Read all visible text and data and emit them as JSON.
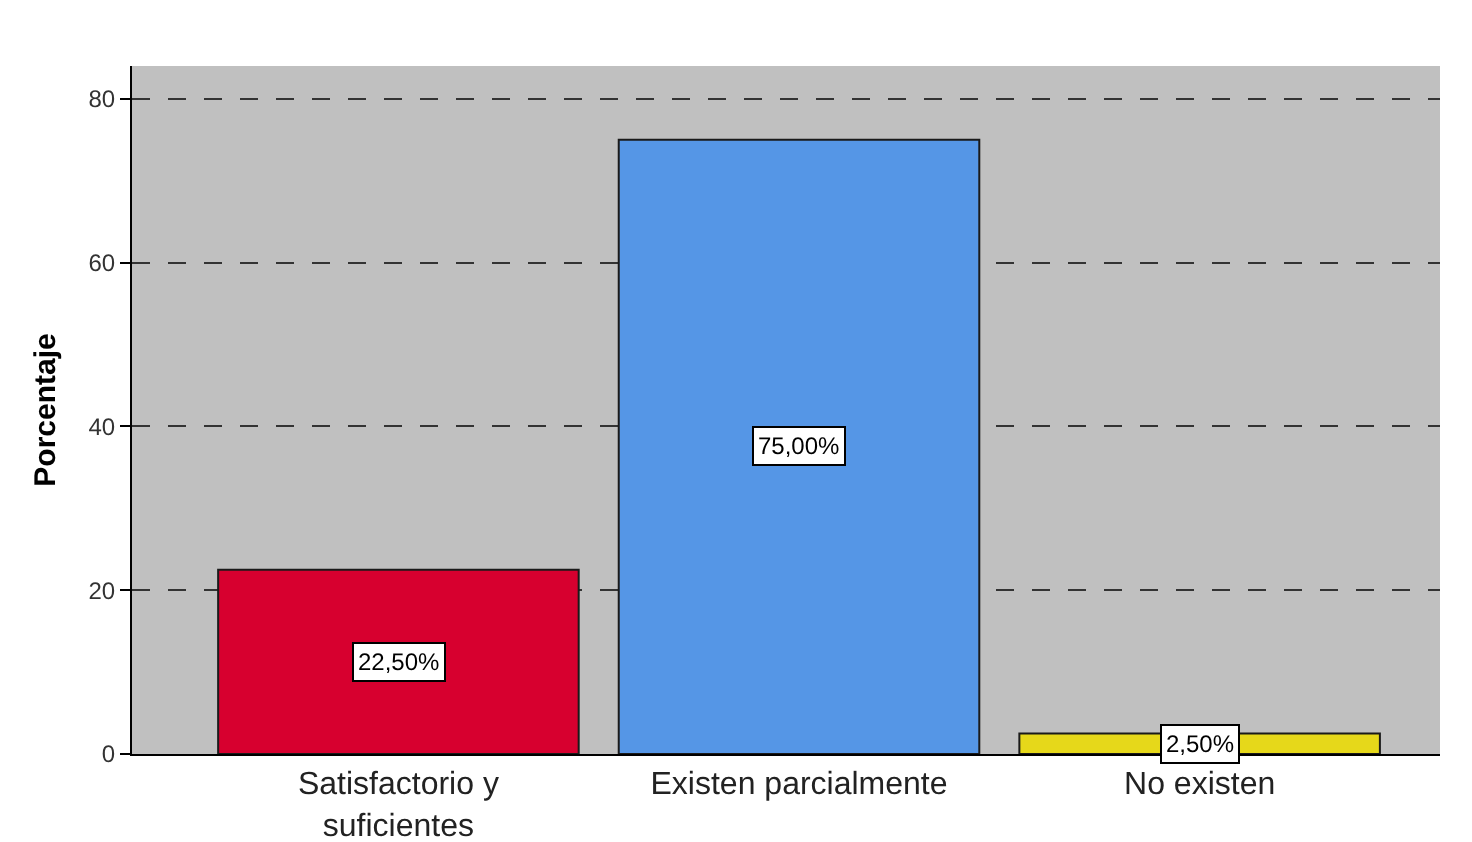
{
  "chart_data": {
    "type": "bar",
    "categories": [
      "Satisfactorio y suficientes",
      "Existen parcialmente",
      "No existen"
    ],
    "values": [
      22.5,
      75,
      2.5
    ],
    "colors": [
      "#d7002f",
      "#5596e6",
      "#e6d81a"
    ],
    "value_labels": [
      "22,50%",
      "75,00%",
      "2,50%"
    ],
    "ylabel": "Porcentaje",
    "ylim": [
      0,
      84
    ],
    "yticks": [
      0,
      20,
      40,
      60,
      80
    ],
    "grid": "y"
  }
}
